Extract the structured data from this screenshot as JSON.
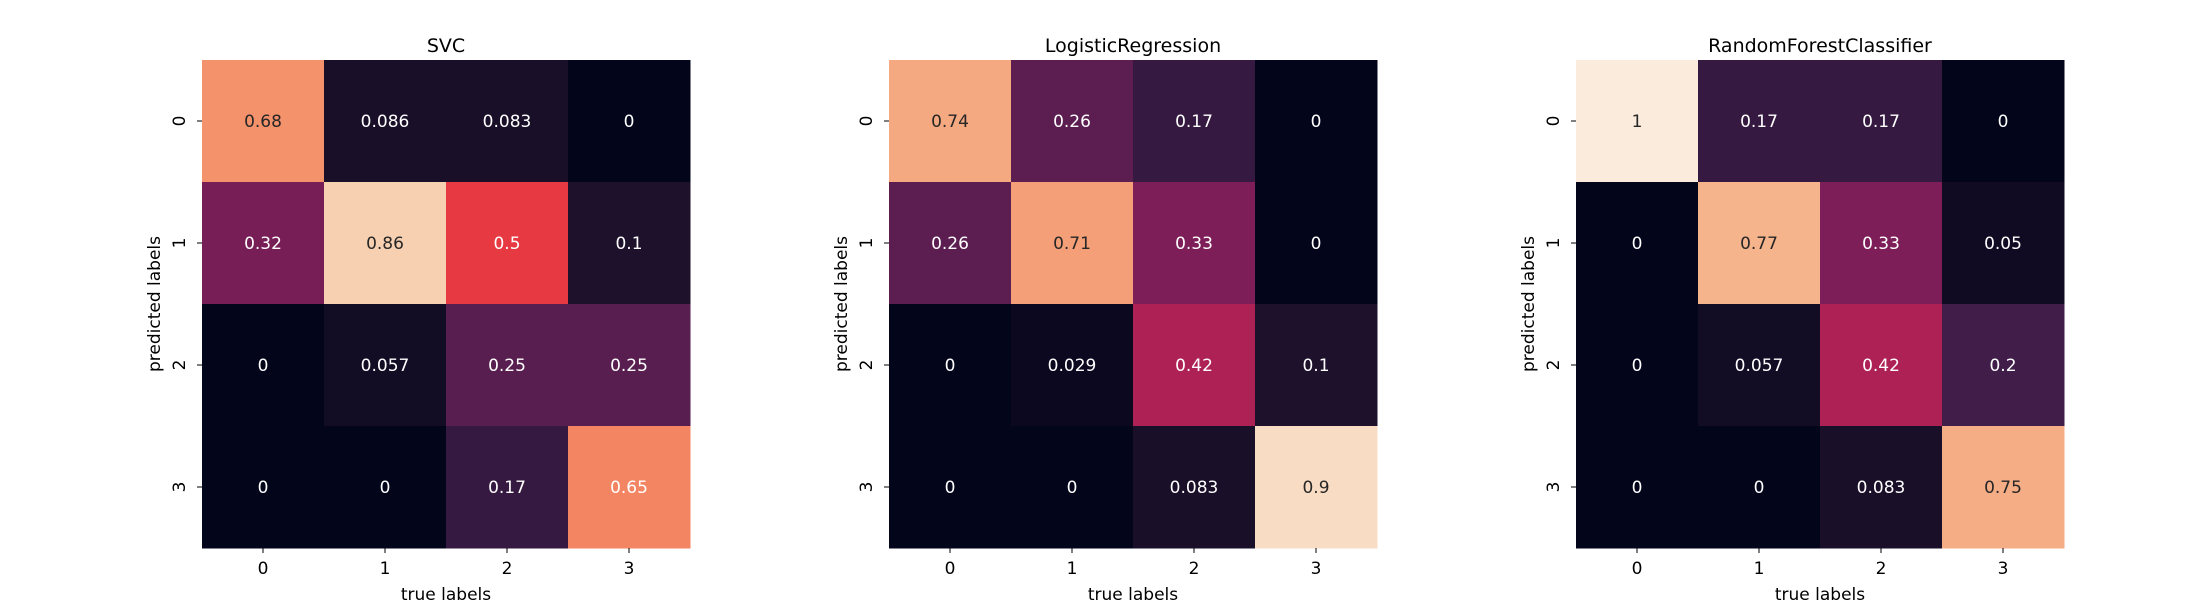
{
  "chart_data": [
    {
      "type": "heatmap",
      "title": "SVC",
      "xlabel": "true labels",
      "ylabel": "predicted labels",
      "x_categories": [
        "0",
        "1",
        "2",
        "3"
      ],
      "y_categories": [
        "0",
        "1",
        "2",
        "3"
      ],
      "values": [
        [
          0.68,
          0.086,
          0.083,
          0
        ],
        [
          0.32,
          0.86,
          0.5,
          0.1
        ],
        [
          0,
          0.057,
          0.25,
          0.25
        ],
        [
          0,
          0,
          0.17,
          0.65
        ]
      ],
      "value_labels": [
        [
          "0.68",
          "0.086",
          "0.083",
          "0"
        ],
        [
          "0.32",
          "0.86",
          "0.5",
          "0.1"
        ],
        [
          "0",
          "0.057",
          "0.25",
          "0.25"
        ],
        [
          "0",
          "0",
          "0.17",
          "0.65"
        ]
      ],
      "colormap": "rocket",
      "colorbar": false
    },
    {
      "type": "heatmap",
      "title": "LogisticRegression",
      "xlabel": "true labels",
      "ylabel": "predicted labels",
      "x_categories": [
        "0",
        "1",
        "2",
        "3"
      ],
      "y_categories": [
        "0",
        "1",
        "2",
        "3"
      ],
      "values": [
        [
          0.74,
          0.26,
          0.17,
          0
        ],
        [
          0.26,
          0.71,
          0.33,
          0
        ],
        [
          0,
          0.029,
          0.42,
          0.1
        ],
        [
          0,
          0,
          0.083,
          0.9
        ]
      ],
      "value_labels": [
        [
          "0.74",
          "0.26",
          "0.17",
          "0"
        ],
        [
          "0.26",
          "0.71",
          "0.33",
          "0"
        ],
        [
          "0",
          "0.029",
          "0.42",
          "0.1"
        ],
        [
          "0",
          "0",
          "0.083",
          "0.9"
        ]
      ],
      "colormap": "rocket",
      "colorbar": false
    },
    {
      "type": "heatmap",
      "title": "RandomForestClassifier",
      "xlabel": "true labels",
      "ylabel": "predicted labels",
      "x_categories": [
        "0",
        "1",
        "2",
        "3"
      ],
      "y_categories": [
        "0",
        "1",
        "2",
        "3"
      ],
      "values": [
        [
          1,
          0.17,
          0.17,
          0
        ],
        [
          0,
          0.77,
          0.33,
          0.05
        ],
        [
          0,
          0.057,
          0.42,
          0.2
        ],
        [
          0,
          0,
          0.083,
          0.75
        ]
      ],
      "value_labels": [
        [
          "1",
          "0.17",
          "0.17",
          "0"
        ],
        [
          "0",
          "0.77",
          "0.33",
          "0.05"
        ],
        [
          "0",
          "0.057",
          "0.42",
          "0.2"
        ],
        [
          "0",
          "0",
          "0.083",
          "0.75"
        ]
      ],
      "colormap": "rocket",
      "colorbar": false
    }
  ]
}
